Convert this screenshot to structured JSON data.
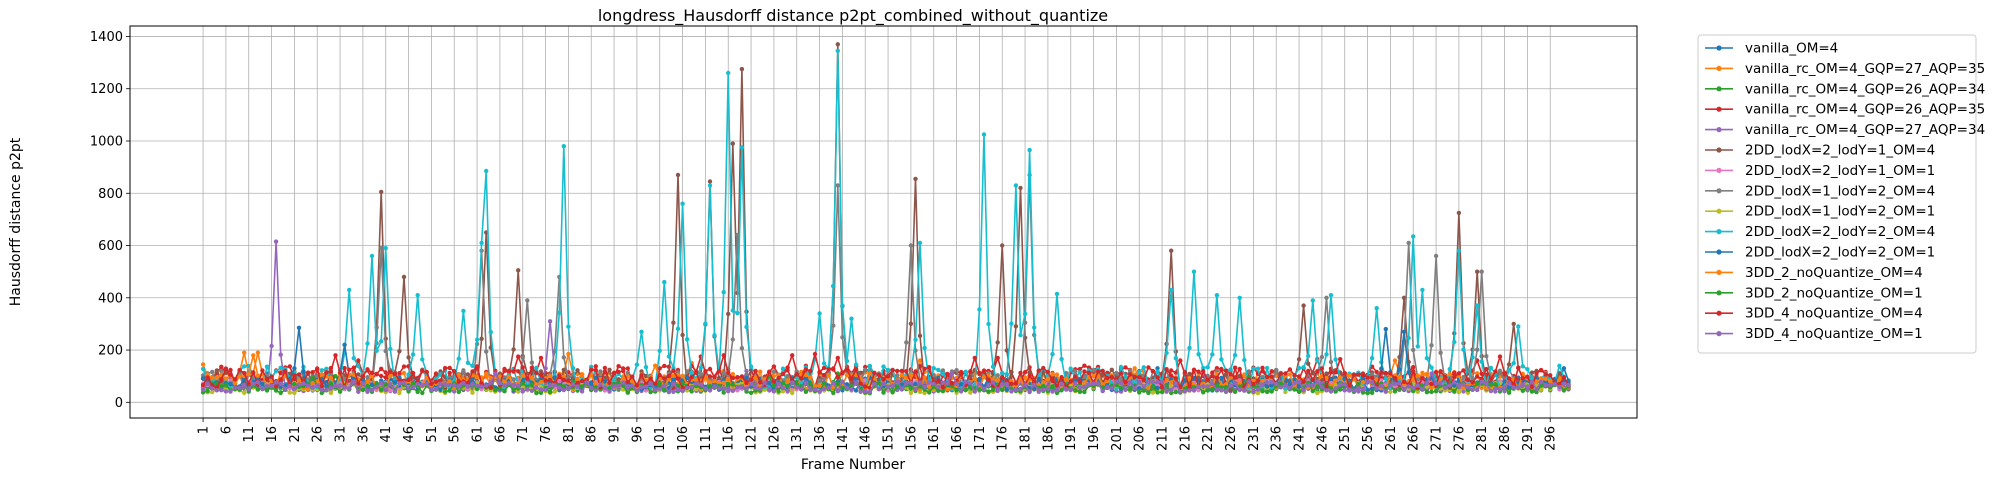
{
  "chart_data": {
    "type": "line",
    "title": "longdress_Hausdorff distance p2pt_combined_without_quantize",
    "xlabel": "Frame Number",
    "ylabel": "Hausdorff distance p2pt",
    "x_start": 1,
    "x_end": 300,
    "xlim": [
      -15,
      315
    ],
    "ylim": [
      -60,
      1440
    ],
    "yticks": [
      0,
      200,
      400,
      600,
      800,
      1000,
      1200,
      1400
    ],
    "xticks": [
      1,
      6,
      11,
      16,
      21,
      26,
      31,
      36,
      41,
      46,
      51,
      56,
      61,
      66,
      71,
      76,
      81,
      86,
      91,
      96,
      101,
      106,
      111,
      116,
      121,
      126,
      131,
      136,
      141,
      146,
      151,
      156,
      161,
      166,
      171,
      176,
      181,
      186,
      191,
      196,
      201,
      206,
      211,
      216,
      221,
      226,
      231,
      236,
      241,
      246,
      251,
      256,
      261,
      266,
      271,
      276,
      281,
      286,
      291,
      296
    ],
    "grid": true,
    "legend_position": "outside-right",
    "series": [
      {
        "name": "vanilla_OM=4",
        "color": "#1f77b4",
        "base": 70,
        "noise": 25,
        "peaks": [
          [
            15,
            110
          ],
          [
            60,
            110
          ],
          [
            150,
            110
          ],
          [
            210,
            130
          ],
          [
            255,
            100
          ],
          [
            299,
            130
          ]
        ]
      },
      {
        "name": "vanilla_rc_OM=4_GQP=27_AQP=35",
        "color": "#ff7f0e",
        "base": 85,
        "noise": 35,
        "peaks": [
          [
            1,
            145
          ],
          [
            10,
            190
          ],
          [
            13,
            190
          ],
          [
            81,
            185
          ],
          [
            108,
            150
          ],
          [
            158,
            160
          ],
          [
            262,
            160
          ]
        ]
      },
      {
        "name": "vanilla_rc_OM=4_GQP=26_AQP=34",
        "color": "#2ca02c",
        "base": 60,
        "noise": 20,
        "peaks": [
          [
            30,
            100
          ],
          [
            140,
            110
          ],
          [
            200,
            100
          ],
          [
            260,
            110
          ]
        ]
      },
      {
        "name": "vanilla_rc_OM=4_GQP=26_AQP=35",
        "color": "#d62728",
        "base": 95,
        "noise": 45,
        "peaks": [
          [
            35,
            160
          ],
          [
            75,
            170
          ],
          [
            110,
            175
          ],
          [
            130,
            180
          ],
          [
            140,
            170
          ],
          [
            175,
            170
          ],
          [
            215,
            160
          ],
          [
            245,
            165
          ],
          [
            280,
            160
          ]
        ]
      },
      {
        "name": "vanilla_rc_OM=4_GQP=27_AQP=34",
        "color": "#9467bd",
        "base": 60,
        "noise": 20,
        "peaks": [
          [
            17,
            615
          ],
          [
            77,
            310
          ],
          [
            120,
            120
          ],
          [
            220,
            110
          ]
        ]
      },
      {
        "name": "2DD_lodX=2_lodY=1_OM=4",
        "color": "#8c564b",
        "base": 85,
        "noise": 40,
        "peaks": [
          [
            40,
            805
          ],
          [
            45,
            480
          ],
          [
            63,
            650
          ],
          [
            70,
            505
          ],
          [
            105,
            870
          ],
          [
            112,
            845
          ],
          [
            117,
            990
          ],
          [
            119,
            1275
          ],
          [
            140,
            1370
          ],
          [
            157,
            855
          ],
          [
            176,
            600
          ],
          [
            180,
            820
          ],
          [
            213,
            580
          ],
          [
            242,
            370
          ],
          [
            264,
            400
          ],
          [
            276,
            725
          ],
          [
            280,
            500
          ],
          [
            288,
            300
          ]
        ]
      },
      {
        "name": "2DD_lodX=2_lodY=1_OM=1",
        "color": "#e377c2",
        "base": 65,
        "noise": 20,
        "peaks": [
          [
            50,
            100
          ],
          [
            145,
            90
          ],
          [
            250,
            90
          ]
        ]
      },
      {
        "name": "2DD_lodX=1_lodY=2_OM=4",
        "color": "#7f7f7f",
        "base": 85,
        "noise": 40,
        "peaks": [
          [
            40,
            590
          ],
          [
            62,
            580
          ],
          [
            72,
            390
          ],
          [
            79,
            480
          ],
          [
            118,
            640
          ],
          [
            140,
            830
          ],
          [
            156,
            600
          ],
          [
            182,
            870
          ],
          [
            247,
            400
          ],
          [
            265,
            610
          ],
          [
            271,
            560
          ],
          [
            281,
            500
          ]
        ]
      },
      {
        "name": "2DD_lodX=1_lodY=2_OM=1",
        "color": "#bcbd22",
        "base": 55,
        "noise": 20,
        "peaks": [
          [
            90,
            90
          ],
          [
            190,
            90
          ],
          [
            240,
            90
          ]
        ]
      },
      {
        "name": "2DD_lodX=2_lodY=2_OM=4",
        "color": "#17becf",
        "base": 95,
        "noise": 45,
        "peaks": [
          [
            33,
            430
          ],
          [
            38,
            560
          ],
          [
            41,
            590
          ],
          [
            48,
            410
          ],
          [
            58,
            350
          ],
          [
            62,
            610
          ],
          [
            63,
            885
          ],
          [
            80,
            980
          ],
          [
            97,
            270
          ],
          [
            102,
            460
          ],
          [
            106,
            760
          ],
          [
            112,
            830
          ],
          [
            116,
            1260
          ],
          [
            119,
            975
          ],
          [
            136,
            340
          ],
          [
            140,
            1345
          ],
          [
            143,
            320
          ],
          [
            158,
            610
          ],
          [
            172,
            1025
          ],
          [
            179,
            830
          ],
          [
            182,
            965
          ],
          [
            188,
            415
          ],
          [
            213,
            430
          ],
          [
            218,
            500
          ],
          [
            223,
            410
          ],
          [
            228,
            400
          ],
          [
            244,
            390
          ],
          [
            248,
            410
          ],
          [
            258,
            360
          ],
          [
            266,
            635
          ],
          [
            268,
            430
          ],
          [
            276,
            580
          ],
          [
            280,
            370
          ],
          [
            289,
            290
          ]
        ]
      },
      {
        "name": "2DD_lodX=2_lodY=2_OM=1",
        "color": "#1f77b4",
        "base": 70,
        "noise": 25,
        "peaks": [
          [
            22,
            285
          ],
          [
            32,
            220
          ],
          [
            260,
            280
          ],
          [
            264,
            270
          ]
        ]
      },
      {
        "name": "3DD_2_noQuantize_OM=4",
        "color": "#ff7f0e",
        "base": 80,
        "noise": 30,
        "peaks": [
          [
            12,
            180
          ],
          [
            100,
            140
          ],
          [
            205,
            130
          ]
        ]
      },
      {
        "name": "3DD_2_noQuantize_OM=1",
        "color": "#2ca02c",
        "base": 55,
        "noise": 20,
        "peaks": [
          [
            25,
            95
          ],
          [
            125,
            100
          ],
          [
            230,
            95
          ]
        ]
      },
      {
        "name": "3DD_4_noQuantize_OM=4",
        "color": "#d62728",
        "base": 95,
        "noise": 40,
        "peaks": [
          [
            30,
            180
          ],
          [
            70,
            175
          ],
          [
            115,
            180
          ],
          [
            135,
            185
          ],
          [
            170,
            170
          ],
          [
            250,
            165
          ],
          [
            285,
            175
          ]
        ]
      },
      {
        "name": "3DD_4_noQuantize_OM=1",
        "color": "#9467bd",
        "base": 60,
        "noise": 20,
        "peaks": [
          [
            65,
            110
          ],
          [
            165,
            110
          ],
          [
            270,
            110
          ]
        ]
      }
    ]
  }
}
